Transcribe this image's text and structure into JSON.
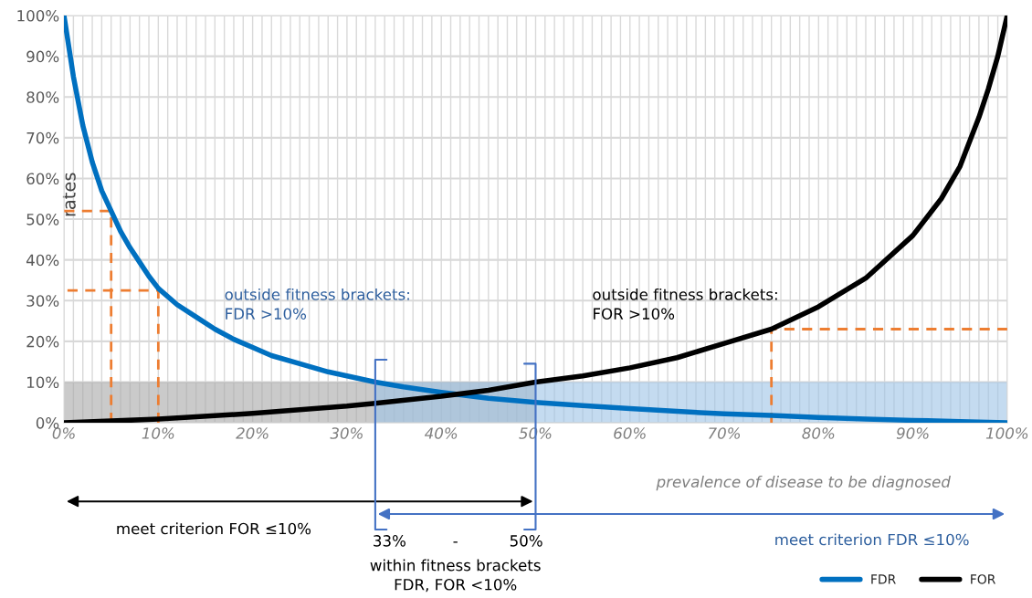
{
  "chart_data": {
    "type": "line",
    "xlabel": "prevalence of disease to be diagnosed",
    "ylabel": "rates",
    "xlim": [
      0,
      100
    ],
    "ylim": [
      0,
      100
    ],
    "xticks": [
      {
        "value": 0,
        "label": "0%"
      },
      {
        "value": 10,
        "label": "10%"
      },
      {
        "value": 20,
        "label": "20%"
      },
      {
        "value": 30,
        "label": "30%"
      },
      {
        "value": 40,
        "label": "40%"
      },
      {
        "value": 50,
        "label": "50%"
      },
      {
        "value": 60,
        "label": "60%"
      },
      {
        "value": 70,
        "label": "70%"
      },
      {
        "value": 80,
        "label": "80%"
      },
      {
        "value": 90,
        "label": "90%"
      },
      {
        "value": 100,
        "label": "100%"
      }
    ],
    "yticks": [
      {
        "value": 0,
        "label": "0%"
      },
      {
        "value": 10,
        "label": "10%"
      },
      {
        "value": 20,
        "label": "20%"
      },
      {
        "value": 30,
        "label": "30%"
      },
      {
        "value": 40,
        "label": "40%"
      },
      {
        "value": 50,
        "label": "50%"
      },
      {
        "value": 60,
        "label": "60%"
      },
      {
        "value": 70,
        "label": "70%"
      },
      {
        "value": 80,
        "label": "80%"
      },
      {
        "value": 90,
        "label": "90%"
      },
      {
        "value": 100,
        "label": "100%"
      }
    ],
    "grid": true,
    "legend": "bottom right",
    "series": [
      {
        "type": "area",
        "color": "#a6a6a6",
        "x": [
          0,
          50
        ],
        "values": [
          10,
          10
        ]
      },
      {
        "type": "area",
        "color": "#9dc3e6",
        "x": [
          33,
          100
        ],
        "values": [
          10,
          10
        ]
      },
      {
        "color": "#ed7d31",
        "line_style": "dashed",
        "x": [
          5,
          5,
          0
        ],
        "values": [
          0,
          52,
          52
        ]
      },
      {
        "color": "#ed7d31",
        "line_style": "dashed",
        "x": [
          10,
          10,
          0
        ],
        "values": [
          0,
          32.5,
          32.5
        ]
      },
      {
        "color": "#ed7d31",
        "line_style": "dashed",
        "x": [
          75,
          75,
          100
        ],
        "values": [
          0,
          23,
          23
        ]
      },
      {
        "name": "FDR",
        "color": "#0070c0",
        "x": [
          0,
          1,
          2,
          3,
          4,
          5,
          6,
          7,
          8,
          9,
          10,
          12,
          14,
          16,
          18,
          20,
          22,
          25,
          28,
          30,
          33,
          36,
          40,
          45,
          50,
          55,
          60,
          65,
          70,
          75,
          80,
          85,
          90,
          95,
          100
        ],
        "values": [
          100,
          85,
          73,
          64,
          57,
          52,
          47,
          43,
          39.5,
          36,
          33,
          29,
          26,
          23,
          20.5,
          18.5,
          16.5,
          14.5,
          12.5,
          11.5,
          10,
          8.8,
          7.5,
          6,
          5,
          4.2,
          3.5,
          2.8,
          2.2,
          1.8,
          1.3,
          0.9,
          0.6,
          0.3,
          0
        ]
      },
      {
        "name": "FOR",
        "color": "#000000",
        "x": [
          0,
          10,
          20,
          30,
          33,
          40,
          45,
          50,
          55,
          60,
          65,
          70,
          75,
          80,
          85,
          90,
          93,
          95,
          97,
          98,
          99,
          100
        ],
        "values": [
          0,
          0.9,
          2.3,
          4.1,
          4.8,
          6.5,
          8,
          10,
          11.5,
          13.5,
          16,
          19.5,
          23,
          28.5,
          35.5,
          46,
          55,
          63,
          75,
          82,
          90,
          100
        ]
      }
    ],
    "ref_lines": [
      {
        "axis": "x",
        "value": 33,
        "color": "#4472c4"
      },
      {
        "axis": "x",
        "value": 50,
        "color": "#4472c4"
      }
    ],
    "annotations": [
      "outside fitness brackets:\nFDR >10%",
      "outside fitness brackets:\nFOR >10%",
      "meet criterion FOR ≤10%",
      "meet criterion FDR ≤10%",
      "33%",
      "-",
      "50%",
      "within fitness brackets\nFDR, FOR <10%"
    ]
  }
}
